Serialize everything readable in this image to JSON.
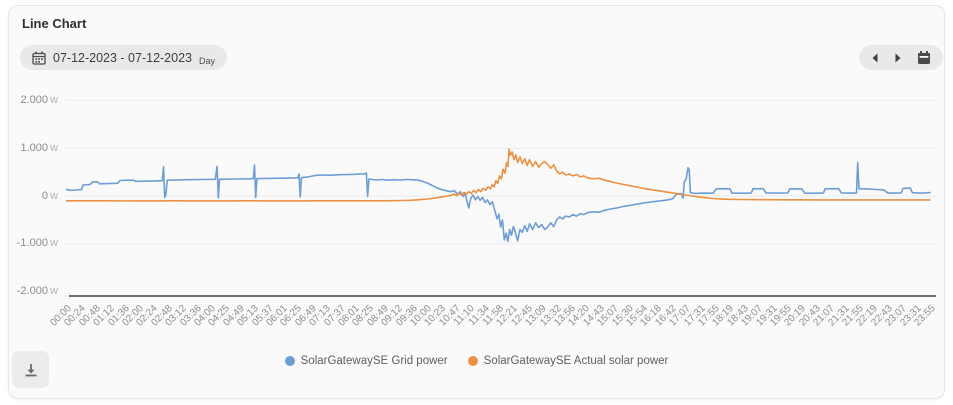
{
  "header": {
    "title": "Line Chart"
  },
  "toolbar": {
    "date_range": "07-12-2023 - 07-12-2023",
    "period": "Day"
  },
  "icons": {
    "date_calendar": "calendar-icon",
    "prev": "chevron-left-icon",
    "next": "chevron-right-icon",
    "nav_calendar": "calendar-icon",
    "download": "download-icon"
  },
  "chart_data": {
    "type": "line",
    "title": "Line Chart",
    "y_unit": "W",
    "ylim": [
      -2000,
      2000
    ],
    "x_range_minutes": [
      0,
      1435
    ],
    "grid": true,
    "legend_position": "bottom",
    "y_gridlines": [
      2000,
      1000,
      0,
      -1000
    ],
    "y_ticks": [
      {
        "value": 2000,
        "label": "2.000"
      },
      {
        "value": 1000,
        "label": "1.000"
      },
      {
        "value": 0,
        "label": "0"
      },
      {
        "value": -1000,
        "label": "-1.000"
      },
      {
        "value": -2000,
        "label": "-2.000"
      }
    ],
    "x_tick_labels": [
      "00:00",
      "00:24",
      "00:48",
      "01:12",
      "01:36",
      "02:00",
      "02:24",
      "02:48",
      "03:12",
      "03:36",
      "04:00",
      "04:25",
      "04:49",
      "05:13",
      "05:37",
      "06:01",
      "06:25",
      "06:49",
      "07:13",
      "07:37",
      "08:01",
      "08:25",
      "08:49",
      "09:12",
      "09:36",
      "10:00",
      "10:23",
      "10:47",
      "11:10",
      "11:34",
      "11:58",
      "12:21",
      "12:45",
      "13:09",
      "13:32",
      "13:56",
      "14:20",
      "14:43",
      "15:07",
      "15:30",
      "15:54",
      "16:18",
      "16:42",
      "17:07",
      "17:31",
      "17:55",
      "18:19",
      "18:43",
      "19:07",
      "19:31",
      "19:55",
      "20:19",
      "20:43",
      "21:07",
      "21:31",
      "21:55",
      "22:19",
      "22:43",
      "23:07",
      "23:31",
      "23:55"
    ],
    "series": [
      {
        "name": "SolarGatewaySE Grid power",
        "color": "#6d9dd4",
        "points": [
          [
            0,
            140
          ],
          [
            8,
            120
          ],
          [
            18,
            125
          ],
          [
            26,
            135
          ],
          [
            28,
            230
          ],
          [
            40,
            240
          ],
          [
            44,
            295
          ],
          [
            52,
            300
          ],
          [
            56,
            255
          ],
          [
            70,
            260
          ],
          [
            85,
            265
          ],
          [
            90,
            325
          ],
          [
            100,
            330
          ],
          [
            112,
            330
          ],
          [
            116,
            305
          ],
          [
            130,
            310
          ],
          [
            150,
            315
          ],
          [
            160,
            320
          ],
          [
            162,
            610
          ],
          [
            164,
            -30
          ],
          [
            166,
            30
          ],
          [
            168,
            330
          ],
          [
            185,
            335
          ],
          [
            200,
            340
          ],
          [
            225,
            345
          ],
          [
            248,
            350
          ],
          [
            251,
            620
          ],
          [
            253,
            -40
          ],
          [
            255,
            350
          ],
          [
            280,
            355
          ],
          [
            305,
            360
          ],
          [
            311,
            365
          ],
          [
            313,
            650
          ],
          [
            315,
            -30
          ],
          [
            317,
            365
          ],
          [
            345,
            370
          ],
          [
            370,
            375
          ],
          [
            385,
            380
          ],
          [
            387,
            460
          ],
          [
            389,
            -20
          ],
          [
            391,
            385
          ],
          [
            400,
            395
          ],
          [
            415,
            430
          ],
          [
            425,
            440
          ],
          [
            440,
            435
          ],
          [
            455,
            445
          ],
          [
            470,
            450
          ],
          [
            480,
            455
          ],
          [
            495,
            465
          ],
          [
            499,
            480
          ],
          [
            501,
            -10
          ],
          [
            503,
            355
          ],
          [
            515,
            335
          ],
          [
            525,
            345
          ],
          [
            535,
            330
          ],
          [
            545,
            340
          ],
          [
            555,
            335
          ],
          [
            565,
            345
          ],
          [
            575,
            340
          ],
          [
            585,
            330
          ],
          [
            592,
            310
          ],
          [
            598,
            280
          ],
          [
            605,
            240
          ],
          [
            612,
            195
          ],
          [
            618,
            160
          ],
          [
            625,
            130
          ],
          [
            632,
            110
          ],
          [
            638,
            90
          ],
          [
            645,
            110
          ],
          [
            650,
            40
          ],
          [
            655,
            90
          ],
          [
            660,
            -10
          ],
          [
            663,
            60
          ],
          [
            666,
            -120
          ],
          [
            669,
            -250
          ],
          [
            672,
            -60
          ],
          [
            676,
            20
          ],
          [
            680,
            -80
          ],
          [
            684,
            -10
          ],
          [
            688,
            -90
          ],
          [
            692,
            -30
          ],
          [
            696,
            -140
          ],
          [
            700,
            -80
          ],
          [
            704,
            -180
          ],
          [
            708,
            -120
          ],
          [
            712,
            -300
          ],
          [
            716,
            -480
          ],
          [
            719,
            -380
          ],
          [
            722,
            -650
          ],
          [
            725,
            -500
          ],
          [
            728,
            -920
          ],
          [
            731,
            -780
          ],
          [
            734,
            -950
          ],
          [
            737,
            -700
          ],
          [
            740,
            -820
          ],
          [
            743,
            -640
          ],
          [
            746,
            -750
          ],
          [
            750,
            -940
          ],
          [
            754,
            -700
          ],
          [
            758,
            -760
          ],
          [
            762,
            -620
          ],
          [
            766,
            -740
          ],
          [
            770,
            -580
          ],
          [
            775,
            -700
          ],
          [
            780,
            -560
          ],
          [
            785,
            -660
          ],
          [
            790,
            -600
          ],
          [
            795,
            -700
          ],
          [
            800,
            -650
          ],
          [
            805,
            -560
          ],
          [
            810,
            -640
          ],
          [
            815,
            -500
          ],
          [
            820,
            -440
          ],
          [
            825,
            -480
          ],
          [
            830,
            -420
          ],
          [
            836,
            -440
          ],
          [
            842,
            -390
          ],
          [
            848,
            -420
          ],
          [
            854,
            -370
          ],
          [
            860,
            -390
          ],
          [
            866,
            -350
          ],
          [
            875,
            -330
          ],
          [
            885,
            -340
          ],
          [
            895,
            -300
          ],
          [
            905,
            -270
          ],
          [
            915,
            -250
          ],
          [
            925,
            -220
          ],
          [
            935,
            -200
          ],
          [
            945,
            -175
          ],
          [
            955,
            -155
          ],
          [
            965,
            -135
          ],
          [
            975,
            -120
          ],
          [
            985,
            -105
          ],
          [
            995,
            -90
          ],
          [
            1002,
            -75
          ],
          [
            1008,
            -55
          ],
          [
            1013,
            30
          ],
          [
            1018,
            45
          ],
          [
            1022,
            50
          ],
          [
            1025,
            -45
          ],
          [
            1027,
            290
          ],
          [
            1030,
            360
          ],
          [
            1033,
            590
          ],
          [
            1035,
            550
          ],
          [
            1037,
            70
          ],
          [
            1045,
            55
          ],
          [
            1060,
            60
          ],
          [
            1075,
            58
          ],
          [
            1080,
            150
          ],
          [
            1095,
            152
          ],
          [
            1103,
            148
          ],
          [
            1106,
            60
          ],
          [
            1125,
            58
          ],
          [
            1138,
            60
          ],
          [
            1141,
            150
          ],
          [
            1158,
            152
          ],
          [
            1163,
            62
          ],
          [
            1185,
            60
          ],
          [
            1199,
            62
          ],
          [
            1202,
            150
          ],
          [
            1222,
            148
          ],
          [
            1227,
            60
          ],
          [
            1250,
            58
          ],
          [
            1258,
            60
          ],
          [
            1261,
            150
          ],
          [
            1283,
            152
          ],
          [
            1288,
            62
          ],
          [
            1308,
            60
          ],
          [
            1313,
            62
          ],
          [
            1315,
            700
          ],
          [
            1317,
            150
          ],
          [
            1332,
            148
          ],
          [
            1345,
            135
          ],
          [
            1358,
            130
          ],
          [
            1365,
            62
          ],
          [
            1378,
            60
          ],
          [
            1387,
            62
          ],
          [
            1390,
            160
          ],
          [
            1402,
            165
          ],
          [
            1406,
            68
          ],
          [
            1418,
            60
          ],
          [
            1428,
            65
          ],
          [
            1435,
            72
          ]
        ]
      },
      {
        "name": "SolarGatewaySE Actual solar power",
        "color": "#ec9143",
        "points": [
          [
            0,
            -100
          ],
          [
            60,
            -100
          ],
          [
            120,
            -102
          ],
          [
            180,
            -101
          ],
          [
            240,
            -102
          ],
          [
            300,
            -101
          ],
          [
            360,
            -102
          ],
          [
            420,
            -101
          ],
          [
            480,
            -100
          ],
          [
            520,
            -100
          ],
          [
            545,
            -98
          ],
          [
            560,
            -95
          ],
          [
            572,
            -90
          ],
          [
            582,
            -82
          ],
          [
            592,
            -72
          ],
          [
            600,
            -62
          ],
          [
            608,
            -50
          ],
          [
            615,
            -38
          ],
          [
            622,
            -25
          ],
          [
            628,
            -12
          ],
          [
            634,
            0
          ],
          [
            640,
            15
          ],
          [
            645,
            40
          ],
          [
            649,
            5
          ],
          [
            653,
            55
          ],
          [
            657,
            20
          ],
          [
            661,
            75
          ],
          [
            665,
            35
          ],
          [
            669,
            95
          ],
          [
            673,
            50
          ],
          [
            677,
            115
          ],
          [
            681,
            70
          ],
          [
            685,
            135
          ],
          [
            689,
            95
          ],
          [
            693,
            160
          ],
          [
            697,
            120
          ],
          [
            701,
            195
          ],
          [
            705,
            150
          ],
          [
            708,
            240
          ],
          [
            711,
            190
          ],
          [
            714,
            320
          ],
          [
            717,
            260
          ],
          [
            720,
            420
          ],
          [
            723,
            360
          ],
          [
            726,
            560
          ],
          [
            729,
            480
          ],
          [
            732,
            700
          ],
          [
            734,
            620
          ],
          [
            736,
            980
          ],
          [
            738,
            850
          ],
          [
            741,
            920
          ],
          [
            744,
            760
          ],
          [
            747,
            860
          ],
          [
            750,
            700
          ],
          [
            754,
            820
          ],
          [
            758,
            680
          ],
          [
            762,
            780
          ],
          [
            766,
            640
          ],
          [
            770,
            760
          ],
          [
            775,
            620
          ],
          [
            780,
            720
          ],
          [
            785,
            600
          ],
          [
            790,
            680
          ],
          [
            795,
            720
          ],
          [
            800,
            660
          ],
          [
            805,
            580
          ],
          [
            810,
            650
          ],
          [
            815,
            520
          ],
          [
            820,
            460
          ],
          [
            825,
            500
          ],
          [
            830,
            440
          ],
          [
            836,
            460
          ],
          [
            842,
            420
          ],
          [
            848,
            450
          ],
          [
            854,
            400
          ],
          [
            860,
            420
          ],
          [
            866,
            380
          ],
          [
            875,
            360
          ],
          [
            885,
            370
          ],
          [
            895,
            330
          ],
          [
            905,
            300
          ],
          [
            915,
            270
          ],
          [
            925,
            245
          ],
          [
            935,
            220
          ],
          [
            945,
            195
          ],
          [
            955,
            170
          ],
          [
            965,
            148
          ],
          [
            975,
            128
          ],
          [
            985,
            108
          ],
          [
            995,
            88
          ],
          [
            1005,
            68
          ],
          [
            1015,
            48
          ],
          [
            1025,
            28
          ],
          [
            1035,
            10
          ],
          [
            1045,
            -8
          ],
          [
            1055,
            -25
          ],
          [
            1065,
            -40
          ],
          [
            1075,
            -52
          ],
          [
            1085,
            -60
          ],
          [
            1100,
            -68
          ],
          [
            1120,
            -74
          ],
          [
            1150,
            -78
          ],
          [
            1200,
            -80
          ],
          [
            1260,
            -81
          ],
          [
            1320,
            -81
          ],
          [
            1380,
            -82
          ],
          [
            1435,
            -82
          ]
        ]
      }
    ]
  }
}
